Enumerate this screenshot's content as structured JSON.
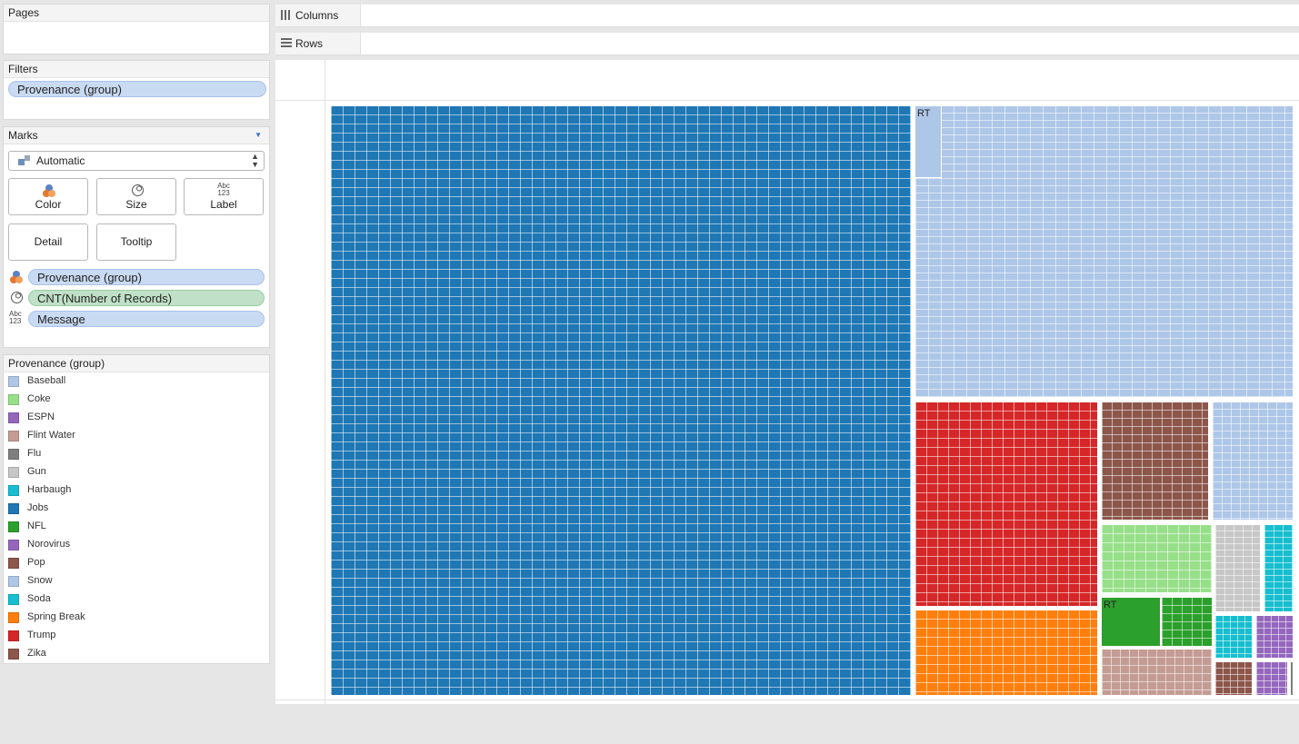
{
  "pages": {
    "title": "Pages"
  },
  "filters": {
    "title": "Filters",
    "pill": "Provenance (group)"
  },
  "marks": {
    "title": "Marks",
    "type": "Automatic",
    "buttons": {
      "color": "Color",
      "size": "Size",
      "label": "Label",
      "label_icon": "Abc\n123",
      "detail": "Detail",
      "tooltip": "Tooltip"
    },
    "fields": [
      {
        "icon": "color-icon",
        "label": "Provenance (group)"
      },
      {
        "icon": "size-icon",
        "label": "CNT(Number of Records)"
      },
      {
        "icon": "label-icon",
        "label": "Message",
        "icon_text": "Abc\n123"
      }
    ]
  },
  "legend": {
    "title": "Provenance (group)",
    "items": [
      {
        "label": "Baseball",
        "color": "#aec7e8"
      },
      {
        "label": "Coke",
        "color": "#98df8a"
      },
      {
        "label": "ESPN",
        "color": "#9467bd"
      },
      {
        "label": "Flint Water",
        "color": "#c49c94"
      },
      {
        "label": "Flu",
        "color": "#7f7f7f"
      },
      {
        "label": "Gun",
        "color": "#c7c7c7"
      },
      {
        "label": "Harbaugh",
        "color": "#17becf"
      },
      {
        "label": "Jobs",
        "color": "#1f77b4"
      },
      {
        "label": "NFL",
        "color": "#2ca02c"
      },
      {
        "label": "Norovirus",
        "color": "#9467bd"
      },
      {
        "label": "Pop",
        "color": "#8c564b"
      },
      {
        "label": "Snow",
        "color": "#aec7e8"
      },
      {
        "label": "Soda",
        "color": "#17becf"
      },
      {
        "label": "Spring Break",
        "color": "#ff7f0e"
      },
      {
        "label": "Trump",
        "color": "#d62728"
      },
      {
        "label": "Zika",
        "color": "#8c564b"
      }
    ]
  },
  "shelves": {
    "columns": "Columns",
    "rows": "Rows"
  },
  "treemap": {
    "labels": [
      "RT",
      "RT"
    ],
    "group_colors": {
      "jobs": "#1f77b4",
      "baseball": "#aec7e8",
      "trump": "#d62728",
      "zika": "#8c564b",
      "snow": "#aec7e8",
      "coke": "#98df8a",
      "gun": "#c7c7c7",
      "harbaugh": "#17becf",
      "spring_break": "#ff7f0e",
      "nfl": "#2ca02c",
      "flint_water": "#c49c94",
      "soda": "#17becf",
      "espn": "#9467bd",
      "pop": "#8c564b",
      "norovirus": "#9467bd",
      "flu": "#7f7f7f"
    }
  }
}
